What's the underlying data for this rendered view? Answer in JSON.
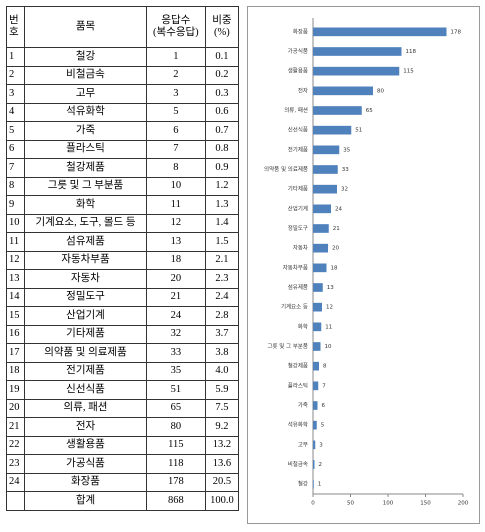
{
  "table": {
    "header": [
      "번\n호",
      "품목",
      "응답수\n(복수응답)",
      "비중\n(%)"
    ],
    "rows": [
      [
        "1",
        "철강",
        "1",
        "0.1"
      ],
      [
        "2",
        "비철금속",
        "2",
        "0.2"
      ],
      [
        "3",
        "고무",
        "3",
        "0.3"
      ],
      [
        "4",
        "석유화학",
        "5",
        "0.6"
      ],
      [
        "5",
        "가죽",
        "6",
        "0.7"
      ],
      [
        "6",
        "플라스틱",
        "7",
        "0.8"
      ],
      [
        "7",
        "철강제품",
        "8",
        "0.9"
      ],
      [
        "8",
        "그릇 및 그 부분품",
        "10",
        "1.2"
      ],
      [
        "9",
        "화학",
        "11",
        "1.3"
      ],
      [
        "10",
        "기계요소, 도구, 몰드 등",
        "12",
        "1.4"
      ],
      [
        "11",
        "섬유제품",
        "13",
        "1.5"
      ],
      [
        "12",
        "자동차부품",
        "18",
        "2.1"
      ],
      [
        "13",
        "자동차",
        "20",
        "2.3"
      ],
      [
        "14",
        "정밀도구",
        "21",
        "2.4"
      ],
      [
        "15",
        "산업기계",
        "24",
        "2.8"
      ],
      [
        "16",
        "기타제품",
        "32",
        "3.7"
      ],
      [
        "17",
        "의약품 및 의료제품",
        "33",
        "3.8"
      ],
      [
        "18",
        "전기제품",
        "35",
        "4.0"
      ],
      [
        "19",
        "신선식품",
        "51",
        "5.9"
      ],
      [
        "20",
        "의류, 패션",
        "65",
        "7.5"
      ],
      [
        "21",
        "전자",
        "80",
        "9.2"
      ],
      [
        "22",
        "생활용품",
        "115",
        "13.2"
      ],
      [
        "23",
        "가공식품",
        "118",
        "13.6"
      ],
      [
        "24",
        "화장품",
        "178",
        "20.5"
      ]
    ],
    "total": {
      "label": "합계",
      "count": "868",
      "share": "100.0"
    }
  },
  "chart_data": {
    "type": "bar",
    "orientation": "horizontal",
    "categories": [
      "화장품",
      "가공식품",
      "생활용품",
      "전자",
      "의류, 패션",
      "신선식품",
      "전기제품",
      "의약품 및 의료제품",
      "기타제품",
      "산업기계",
      "정밀도구",
      "자동차",
      "자동차부품",
      "섬유제품",
      "기계요소 등",
      "화학",
      "그릇 및 그 부분품",
      "철강제품",
      "플라스틱",
      "가죽",
      "석유화학",
      "고무",
      "비철금속",
      "철강"
    ],
    "values": [
      178,
      118,
      115,
      80,
      65,
      51,
      35,
      33,
      32,
      24,
      21,
      20,
      18,
      13,
      12,
      11,
      10,
      8,
      7,
      6,
      5,
      3,
      2,
      1
    ],
    "color": "#4f81bd",
    "xlim": [
      0,
      200
    ],
    "xticks": [
      0,
      50,
      100,
      150,
      200
    ],
    "grid": false
  }
}
